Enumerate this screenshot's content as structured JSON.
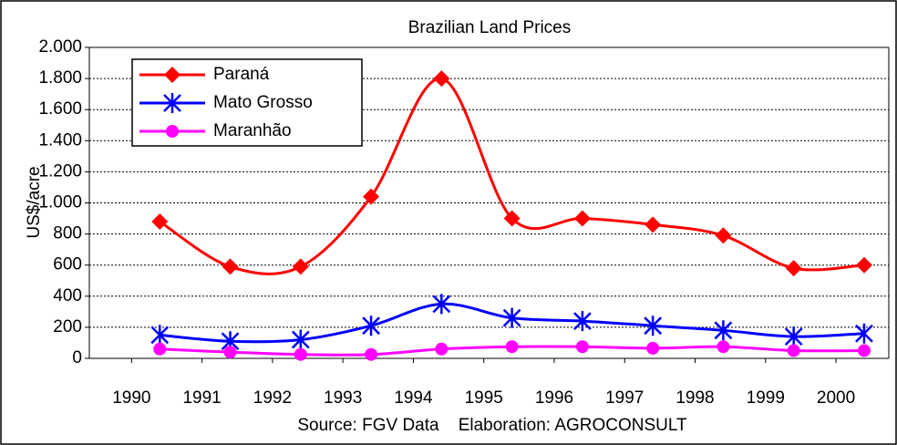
{
  "chart_data": {
    "type": "line",
    "title": "Brazilian Land Prices",
    "y_label": "US$/acre",
    "source": "Source: FGV Data    Elaboration: AGROCONSULT",
    "x": [
      1990.4,
      1991.4,
      1992.4,
      1993.4,
      1994.4,
      1995.4,
      1996.4,
      1997.4,
      1998.4,
      1999.4,
      2000.4
    ],
    "xlim": [
      1989.4,
      2000.75
    ],
    "xticks": [
      1990,
      1991,
      1992,
      1993,
      1994,
      1995,
      1996,
      1997,
      1998,
      1999,
      2000
    ],
    "ylim": [
      0,
      2000
    ],
    "yticks": [
      0,
      200,
      400,
      600,
      800,
      {
        "value": 1000,
        "label": "1.000"
      },
      {
        "value": 1200,
        "label": "1.200"
      },
      {
        "value": 1400,
        "label": "1.400"
      },
      {
        "value": 1600,
        "label": "1.600"
      },
      {
        "value": 1800,
        "label": "1.800"
      },
      {
        "value": 2000,
        "label": "2.000"
      }
    ],
    "grid": true,
    "smooth": true,
    "legend": "top-left",
    "series": [
      {
        "name": "Paraná",
        "color": "#ff0000",
        "marker": "diamond",
        "values": [
          880,
          590,
          590,
          1040,
          1800,
          900,
          900,
          860,
          790,
          580,
          600
        ]
      },
      {
        "name": "Mato Grosso",
        "color": "#0000ff",
        "marker": "asterisk",
        "values": [
          150,
          110,
          120,
          210,
          350,
          260,
          240,
          210,
          180,
          140,
          160
        ]
      },
      {
        "name": "Maranhão",
        "color": "#ff00ff",
        "marker": "circle",
        "values": [
          60,
          40,
          25,
          25,
          60,
          75,
          75,
          65,
          75,
          50,
          50
        ]
      }
    ]
  }
}
